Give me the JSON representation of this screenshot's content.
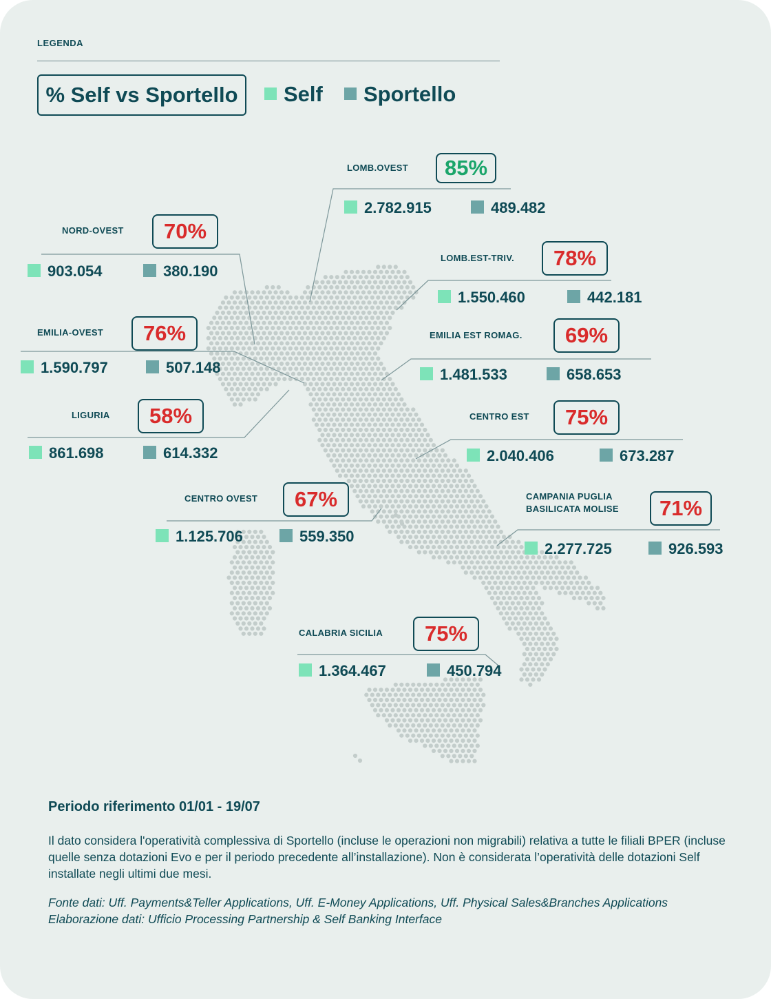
{
  "legend": {
    "title": "LEGENDA",
    "metric_label": "% Self vs Sportello",
    "self_label": "Self",
    "sportello_label": "Sportello"
  },
  "colors": {
    "self": "#7de3b8",
    "sportello": "#6da5a6",
    "text": "#0f4a55",
    "pct_high": "#1aa56a",
    "pct_low": "#d92b2b",
    "map_dots": "#c3cdcb",
    "background": "#e9efed"
  },
  "regions": [
    {
      "name": "LOMB.OVEST",
      "pct": "85%",
      "pct_status": "high",
      "self": "2.782.915",
      "sportello": "489.482"
    },
    {
      "name": "NORD-OVEST",
      "pct": "70%",
      "pct_status": "low",
      "self": "903.054",
      "sportello": "380.190"
    },
    {
      "name": "LOMB.EST-TRIV.",
      "pct": "78%",
      "pct_status": "low",
      "self": "1.550.460",
      "sportello": "442.181"
    },
    {
      "name": "EMILIA-OVEST",
      "pct": "76%",
      "pct_status": "low",
      "self": "1.590.797",
      "sportello": "507.148"
    },
    {
      "name": "EMILIA EST ROMAG.",
      "pct": "69%",
      "pct_status": "low",
      "self": "1.481.533",
      "sportello": "658.653"
    },
    {
      "name": "LIGURIA",
      "pct": "58%",
      "pct_status": "low",
      "self": "861.698",
      "sportello": "614.332"
    },
    {
      "name": "CENTRO EST",
      "pct": "75%",
      "pct_status": "low",
      "self": "2.040.406",
      "sportello": "673.287"
    },
    {
      "name": "CENTRO OVEST",
      "pct": "67%",
      "pct_status": "low",
      "self": "1.125.706",
      "sportello": "559.350"
    },
    {
      "name_line1": "CAMPANIA PUGLIA",
      "name_line2": "BASILICATA MOLISE",
      "pct": "71%",
      "pct_status": "low",
      "self": "2.277.725",
      "sportello": "926.593"
    },
    {
      "name": "CALABRIA SICILIA",
      "pct": "75%",
      "pct_status": "low",
      "self": "1.364.467",
      "sportello": "450.794"
    }
  ],
  "footer": {
    "period": "Periodo riferimento 01/01 - 19/07",
    "note": "Il dato considera l'operatività complessiva di Sportello (incluse le operazioni non migrabili) relativa a tutte le filiali BPER (incluse quelle senza dotazioni Evo e per il periodo precedente all’installazione). Non è considerata l’operatività delle dotazioni Self installate negli ultimi due mesi.",
    "source_1": "Fonte dati: Uff. Payments&Teller Applications, Uff. E-Money Applications, Uff. Physical Sales&Branches Applications",
    "source_2": "Elaborazione dati: Ufficio Processing Partnership & Self Banking Interface"
  }
}
